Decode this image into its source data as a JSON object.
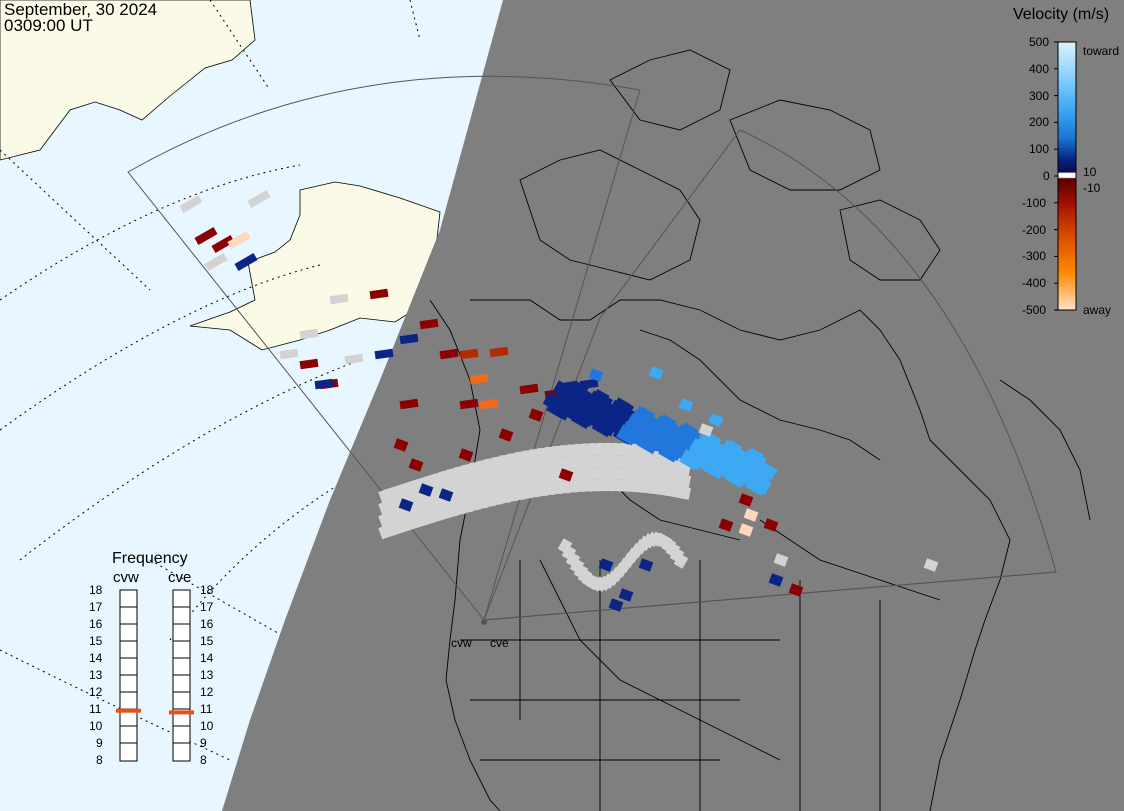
{
  "timestamp": {
    "date": "September, 30 2024",
    "time": "0309:00 UT"
  },
  "colorbar": {
    "title": "Velocity (m/s)",
    "ticks": [
      "500",
      "400",
      "300",
      "200",
      "100",
      "0",
      "-100",
      "-200",
      "-300",
      "-400",
      "-500"
    ],
    "label_toward": "toward",
    "label_away": "away",
    "label_pos": "10",
    "label_neg": "-10",
    "colors": [
      "#cfeeff",
      "#8fd2ff",
      "#3da9f5",
      "#1478d8",
      "#0b4fb0",
      "#06237f",
      "#ffffff",
      "#7a0000",
      "#a82000",
      "#d94a00",
      "#ff8a00",
      "#ffd0a8"
    ]
  },
  "frequency": {
    "title": "Frequency",
    "radars": [
      {
        "name": "cvw",
        "value_mhz": 10.9
      },
      {
        "name": "cve",
        "value_mhz": 10.8
      }
    ],
    "scale": [
      "18",
      "17",
      "16",
      "15",
      "14",
      "13",
      "12",
      "11",
      "10",
      "9",
      "8"
    ],
    "marker_color": "#e8501a"
  },
  "map": {
    "night_color": "#7f7f7f",
    "day_ocean_color": "#e8f6ff",
    "day_land_color": "#fbfae6",
    "scatter_colors": [
      "#d3d3d3",
      "#0a2585",
      "#8b0000",
      "#b22a00",
      "#2277dd",
      "#3da9f5",
      "#f26a1b",
      "#ffd7bd"
    ],
    "radar_labels": [
      "cvw",
      "cve"
    ]
  }
}
